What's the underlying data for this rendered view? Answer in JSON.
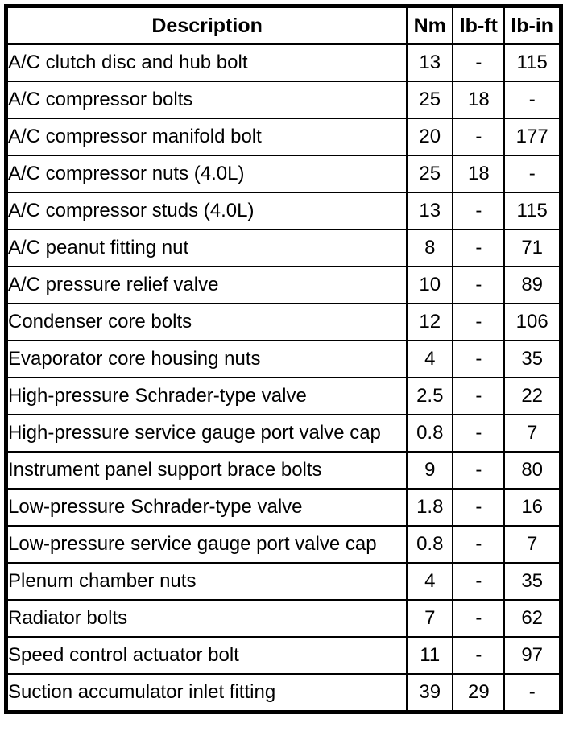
{
  "table": {
    "headers": {
      "description": "Description",
      "nm": "Nm",
      "lb_ft": "lb-ft",
      "lb_in": "lb-in"
    },
    "rows": [
      {
        "description": "A/C clutch disc and hub bolt",
        "nm": "13",
        "lb_ft": "-",
        "lb_in": "115"
      },
      {
        "description": "A/C compressor bolts",
        "nm": "25",
        "lb_ft": "18",
        "lb_in": "-"
      },
      {
        "description": "A/C compressor manifold bolt",
        "nm": "20",
        "lb_ft": "-",
        "lb_in": "177"
      },
      {
        "description": "A/C compressor nuts (4.0L)",
        "nm": "25",
        "lb_ft": "18",
        "lb_in": "-"
      },
      {
        "description": "A/C compressor studs (4.0L)",
        "nm": "13",
        "lb_ft": "-",
        "lb_in": "115"
      },
      {
        "description": "A/C peanut fitting nut",
        "nm": "8",
        "lb_ft": "-",
        "lb_in": "71"
      },
      {
        "description": "A/C pressure relief valve",
        "nm": "10",
        "lb_ft": "-",
        "lb_in": "89"
      },
      {
        "description": "Condenser core bolts",
        "nm": "12",
        "lb_ft": "-",
        "lb_in": "106"
      },
      {
        "description": "Evaporator core housing nuts",
        "nm": "4",
        "lb_ft": "-",
        "lb_in": "35"
      },
      {
        "description": "High-pressure Schrader-type valve",
        "nm": "2.5",
        "lb_ft": "-",
        "lb_in": "22"
      },
      {
        "description": "High-pressure service gauge port valve cap",
        "nm": "0.8",
        "lb_ft": "-",
        "lb_in": "7"
      },
      {
        "description": "Instrument panel support brace bolts",
        "nm": "9",
        "lb_ft": "-",
        "lb_in": "80"
      },
      {
        "description": "Low-pressure Schrader-type valve",
        "nm": "1.8",
        "lb_ft": "-",
        "lb_in": "16"
      },
      {
        "description": "Low-pressure service gauge port valve cap",
        "nm": "0.8",
        "lb_ft": "-",
        "lb_in": "7"
      },
      {
        "description": "Plenum chamber nuts",
        "nm": "4",
        "lb_ft": "-",
        "lb_in": "35"
      },
      {
        "description": "Radiator bolts",
        "nm": "7",
        "lb_ft": "-",
        "lb_in": "62"
      },
      {
        "description": "Speed control actuator bolt",
        "nm": "11",
        "lb_ft": "-",
        "lb_in": "97"
      },
      {
        "description": "Suction accumulator inlet fitting",
        "nm": "39",
        "lb_ft": "29",
        "lb_in": "-"
      }
    ]
  }
}
